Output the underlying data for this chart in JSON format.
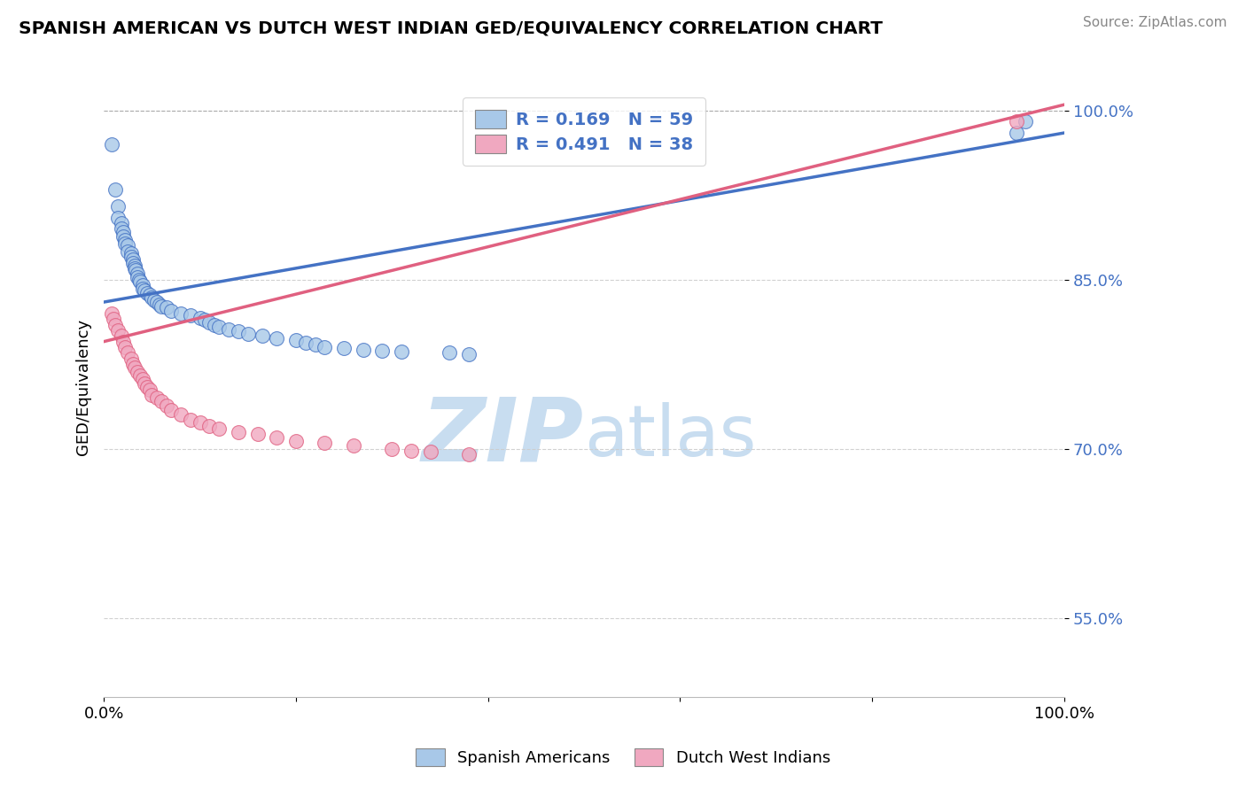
{
  "title": "SPANISH AMERICAN VS DUTCH WEST INDIAN GED/EQUIVALENCY CORRELATION CHART",
  "source": "Source: ZipAtlas.com",
  "ylabel": "GED/Equivalency",
  "xlim": [
    0.0,
    1.0
  ],
  "ylim": [
    0.48,
    1.03
  ],
  "yticks": [
    0.55,
    0.7,
    0.85,
    1.0
  ],
  "ytick_labels": [
    "55.0%",
    "70.0%",
    "85.0%",
    "100.0%"
  ],
  "blue_label": "Spanish Americans",
  "pink_label": "Dutch West Indians",
  "blue_R": "0.169",
  "blue_N": "59",
  "pink_R": "0.491",
  "pink_N": "38",
  "blue_color": "#a8c8e8",
  "pink_color": "#f0a8c0",
  "blue_line_color": "#4472c4",
  "pink_line_color": "#e06080",
  "watermark_zip": "ZIP",
  "watermark_atlas": "atlas",
  "watermark_color": "#c8ddf0",
  "blue_x": [
    0.008,
    0.012,
    0.015,
    0.015,
    0.018,
    0.018,
    0.02,
    0.02,
    0.022,
    0.022,
    0.025,
    0.025,
    0.028,
    0.028,
    0.03,
    0.03,
    0.032,
    0.032,
    0.033,
    0.035,
    0.035,
    0.037,
    0.038,
    0.04,
    0.04,
    0.042,
    0.045,
    0.048,
    0.05,
    0.052,
    0.055,
    0.058,
    0.06,
    0.065,
    0.07,
    0.08,
    0.09,
    0.1,
    0.105,
    0.11,
    0.115,
    0.12,
    0.13,
    0.14,
    0.15,
    0.165,
    0.18,
    0.2,
    0.21,
    0.22,
    0.23,
    0.25,
    0.27,
    0.29,
    0.31,
    0.36,
    0.38,
    0.95,
    0.96
  ],
  "blue_y": [
    0.97,
    0.93,
    0.915,
    0.905,
    0.9,
    0.895,
    0.892,
    0.888,
    0.885,
    0.882,
    0.88,
    0.875,
    0.873,
    0.87,
    0.868,
    0.865,
    0.862,
    0.86,
    0.858,
    0.855,
    0.852,
    0.85,
    0.848,
    0.845,
    0.842,
    0.84,
    0.838,
    0.836,
    0.834,
    0.832,
    0.83,
    0.828,
    0.826,
    0.825,
    0.822,
    0.82,
    0.818,
    0.816,
    0.814,
    0.812,
    0.81,
    0.808,
    0.806,
    0.804,
    0.802,
    0.8,
    0.798,
    0.796,
    0.794,
    0.792,
    0.79,
    0.789,
    0.788,
    0.787,
    0.786,
    0.785,
    0.784,
    0.98,
    0.99
  ],
  "pink_x": [
    0.008,
    0.01,
    0.012,
    0.015,
    0.018,
    0.02,
    0.022,
    0.025,
    0.028,
    0.03,
    0.032,
    0.035,
    0.038,
    0.04,
    0.042,
    0.045,
    0.048,
    0.05,
    0.055,
    0.06,
    0.065,
    0.07,
    0.08,
    0.09,
    0.1,
    0.11,
    0.12,
    0.14,
    0.16,
    0.18,
    0.2,
    0.23,
    0.26,
    0.3,
    0.32,
    0.34,
    0.38,
    0.95
  ],
  "pink_y": [
    0.82,
    0.815,
    0.81,
    0.805,
    0.8,
    0.795,
    0.79,
    0.785,
    0.78,
    0.775,
    0.772,
    0.768,
    0.765,
    0.762,
    0.758,
    0.755,
    0.752,
    0.748,
    0.745,
    0.742,
    0.738,
    0.734,
    0.73,
    0.726,
    0.723,
    0.72,
    0.718,
    0.715,
    0.713,
    0.71,
    0.707,
    0.705,
    0.703,
    0.7,
    0.698,
    0.697,
    0.695,
    0.99
  ]
}
